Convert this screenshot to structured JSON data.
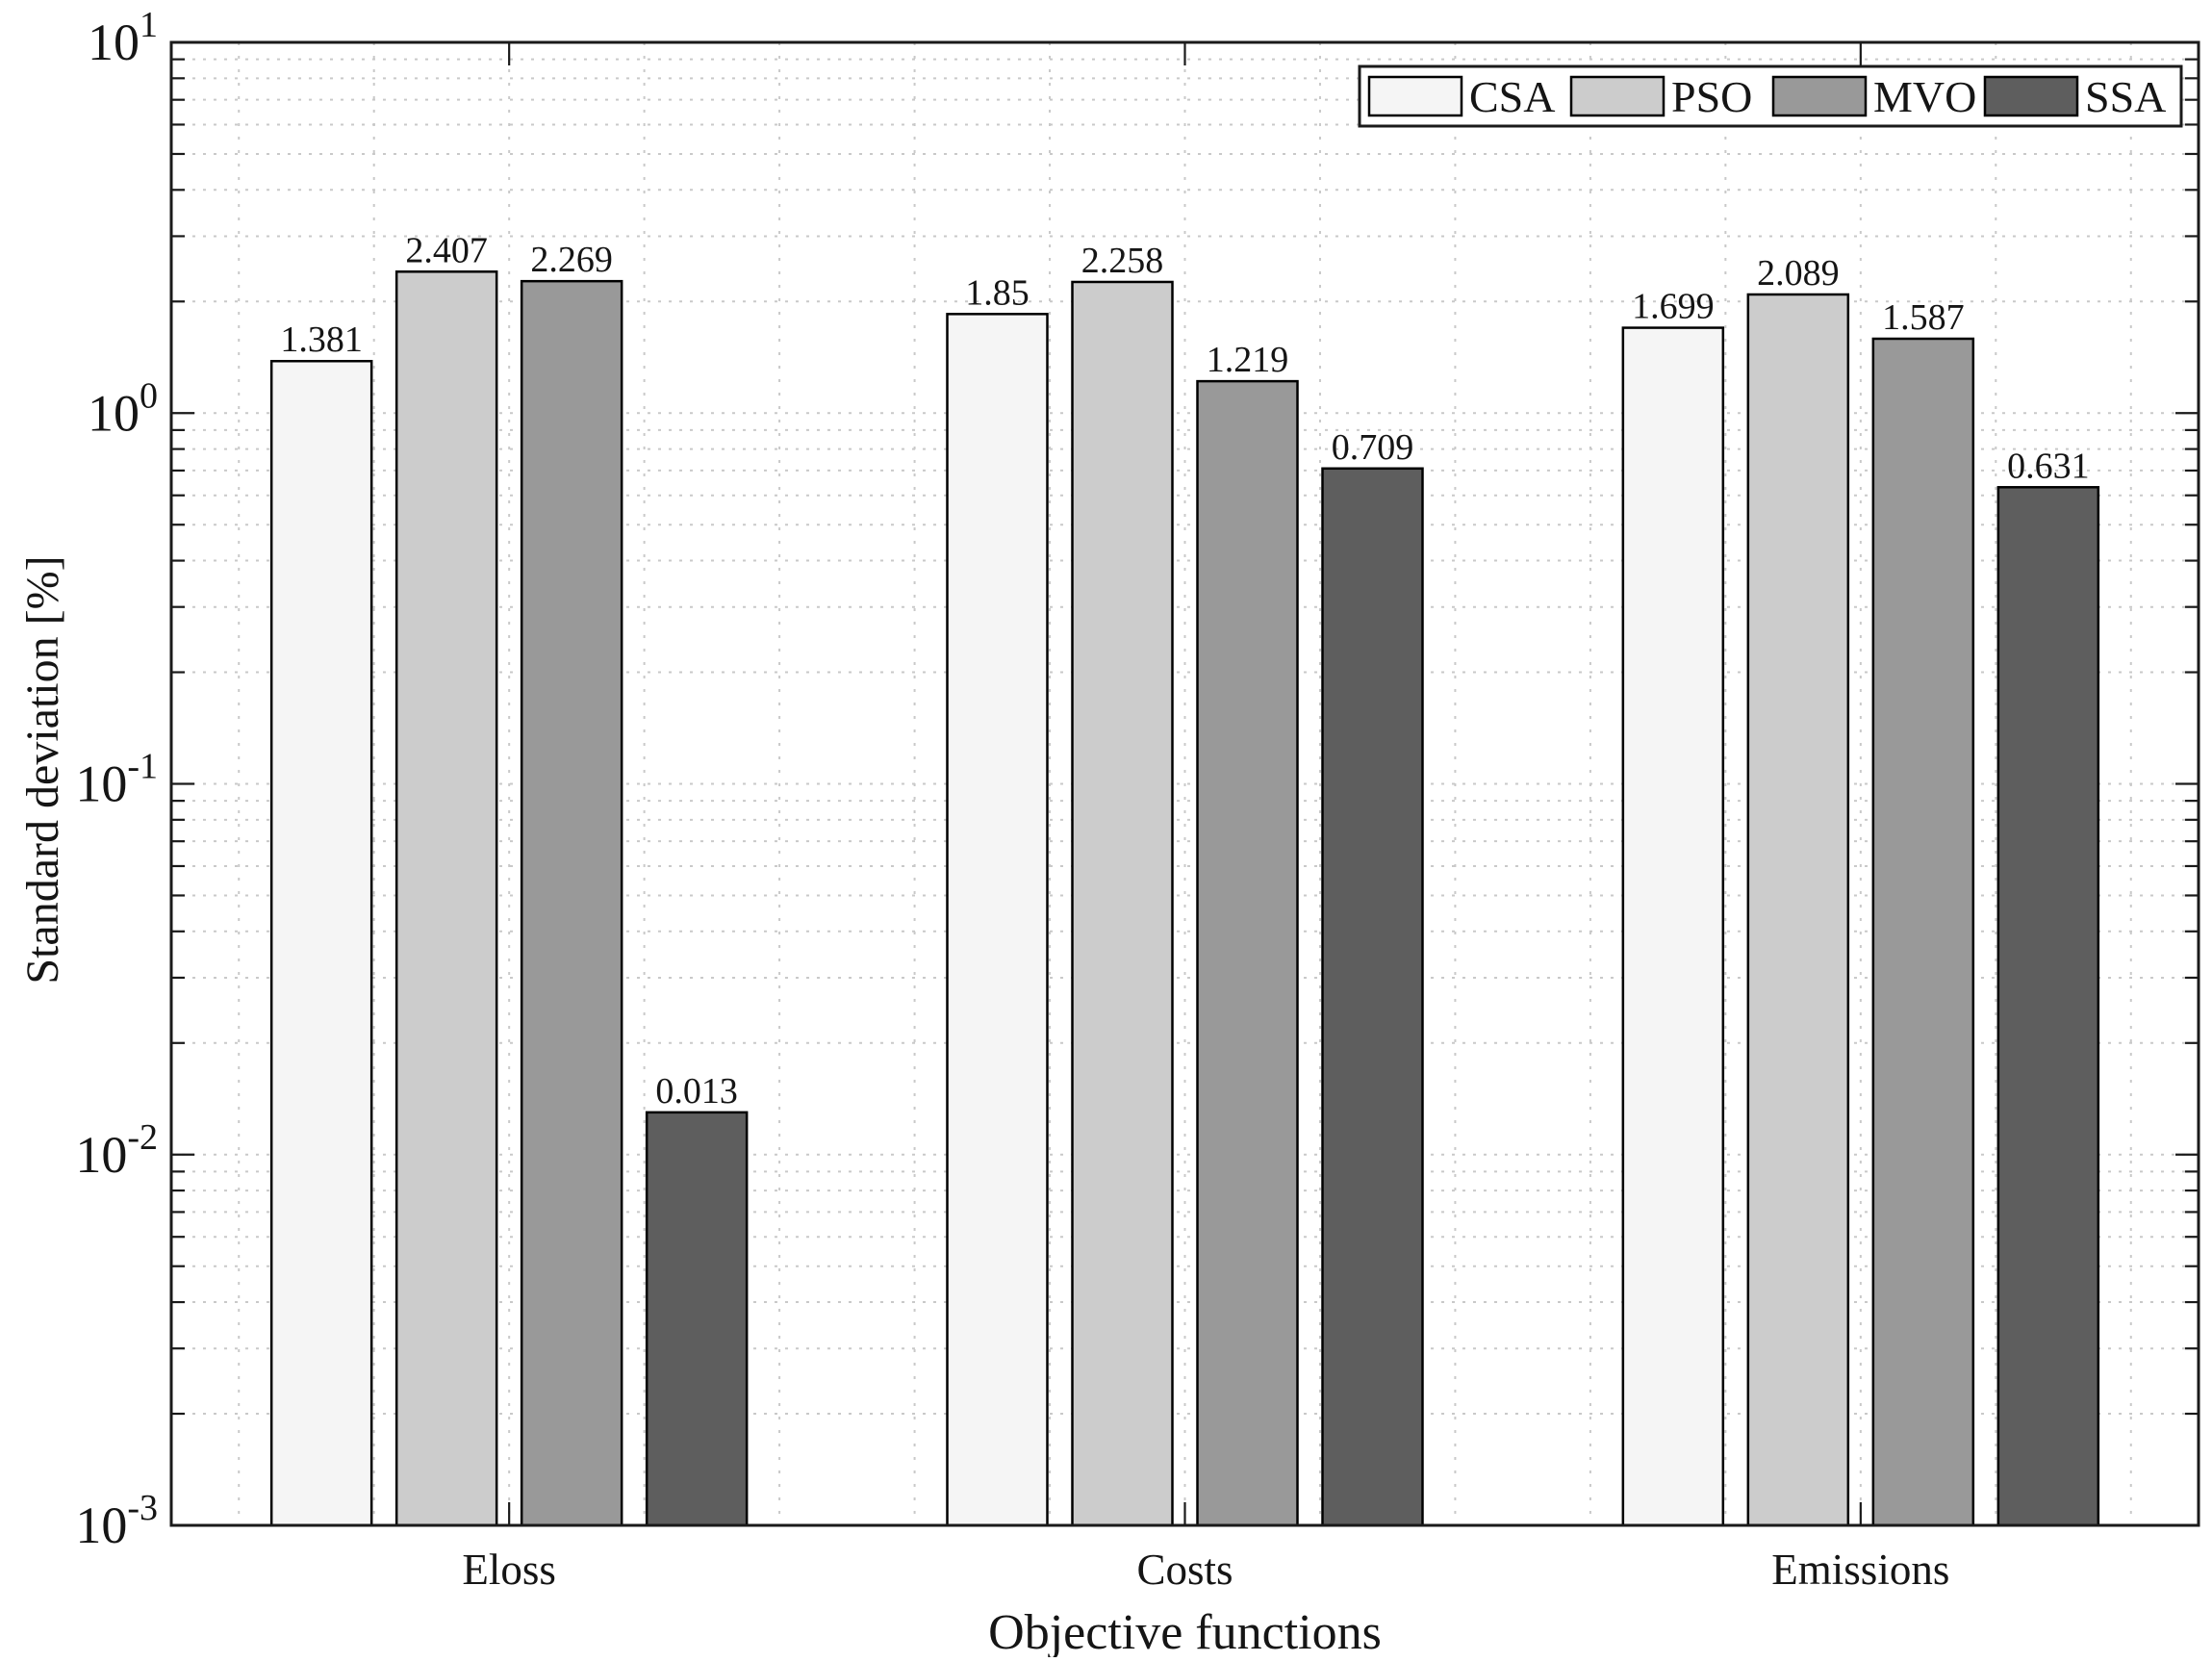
{
  "figure": {
    "background_color": "#ffffff",
    "axis_color": "#1a1a1a",
    "grid_color": "#c9c9c9",
    "bar_edge_color": "#000000"
  },
  "chart_data": {
    "type": "bar",
    "title": "",
    "xlabel": "Objective functions",
    "ylabel": "Standard deviation  [%]",
    "categories": [
      "Eloss",
      "Costs",
      "Emissions"
    ],
    "series": [
      {
        "name": "CSA",
        "color": "#f5f5f5",
        "values": [
          1.381,
          1.85,
          1.699
        ],
        "labels": [
          "1.381",
          "1.85",
          "1.699"
        ]
      },
      {
        "name": "PSO",
        "color": "#cccccc",
        "values": [
          2.407,
          2.258,
          2.089
        ],
        "labels": [
          "2.407",
          "2.258",
          "2.089"
        ]
      },
      {
        "name": "MVO",
        "color": "#999999",
        "values": [
          2.269,
          1.219,
          1.587
        ],
        "labels": [
          "2.269",
          "1.219",
          "1.587"
        ]
      },
      {
        "name": "SSA",
        "color": "#5e5e5e",
        "values": [
          0.013,
          0.709,
          0.631
        ],
        "labels": [
          "0.013",
          "0.709",
          "0.631"
        ]
      }
    ],
    "y_scale": "log",
    "ylim": [
      0.001,
      10
    ],
    "y_tick_base": "10",
    "y_tick_exponents": [
      "1",
      "0",
      "-1",
      "-2",
      "-3"
    ],
    "grid": true,
    "minor_grid": true,
    "legend_position": "top-right",
    "legend_labels": [
      "CSA",
      "PSO",
      "MVO",
      "SSA"
    ]
  }
}
